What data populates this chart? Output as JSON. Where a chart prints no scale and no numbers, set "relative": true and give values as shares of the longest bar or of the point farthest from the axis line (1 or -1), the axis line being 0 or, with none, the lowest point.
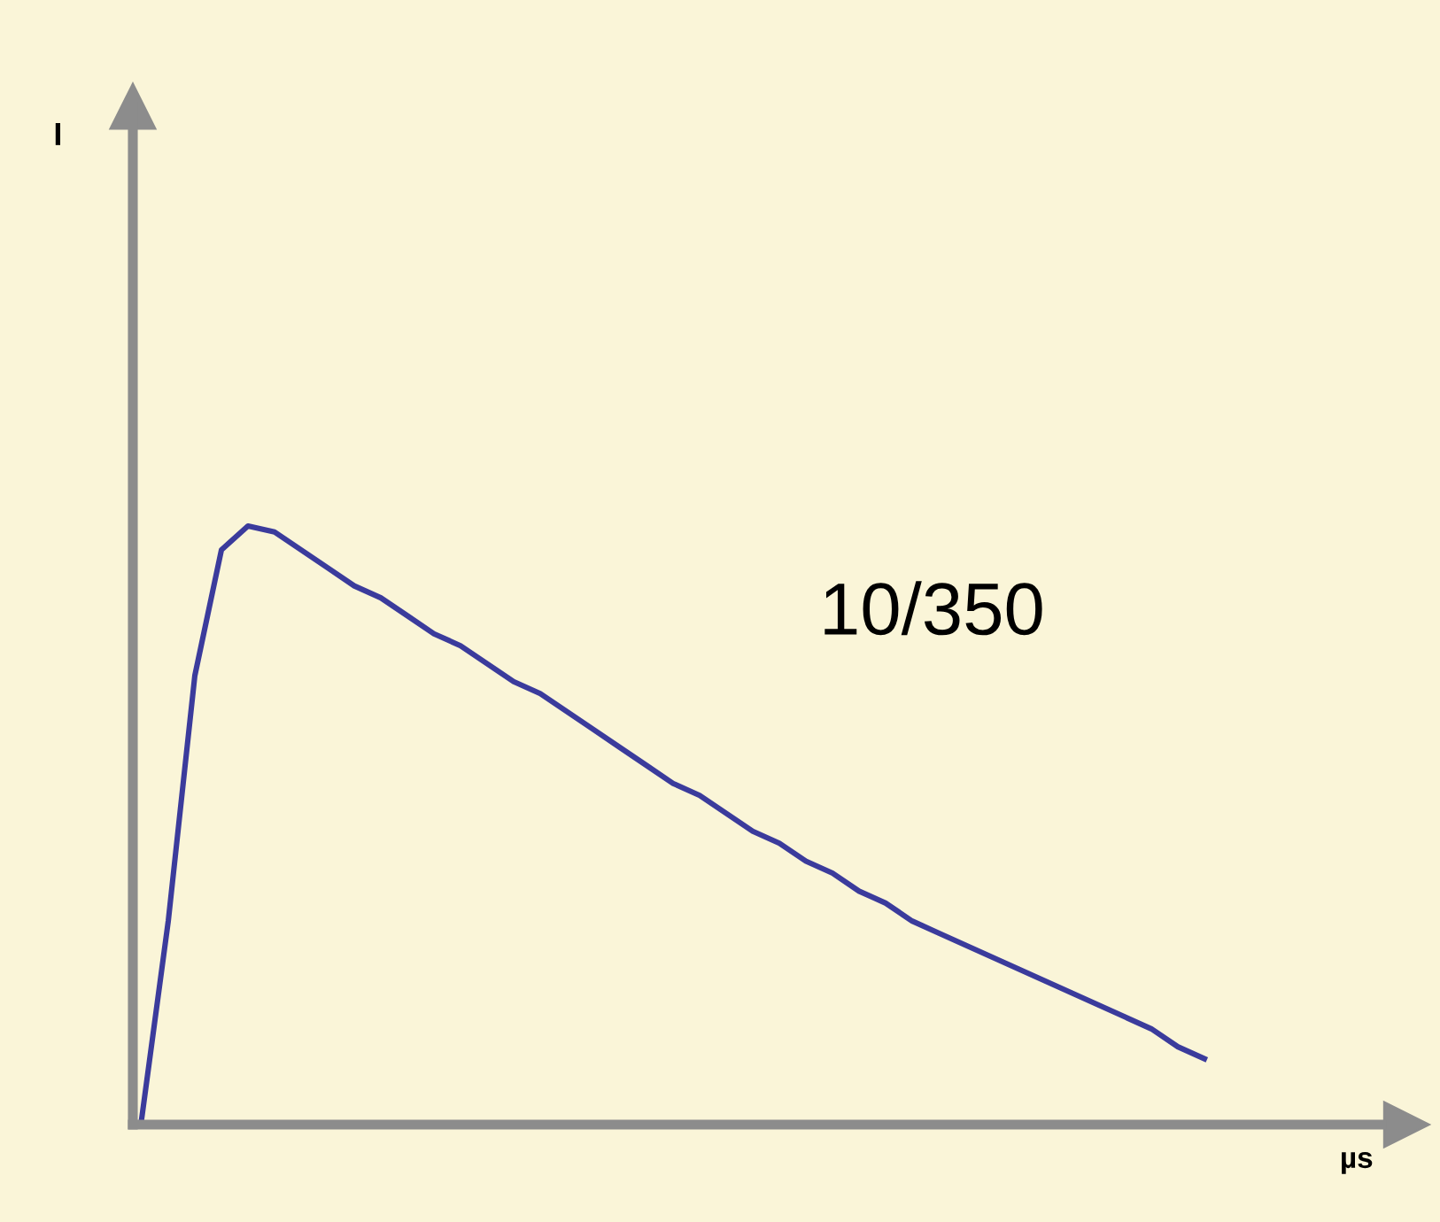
{
  "chart_data": {
    "type": "line",
    "relative": true,
    "xlabel": "µs",
    "annotations": [
      "10/350",
      "I"
    ],
    "categories": [
      null,
      null,
      null,
      null,
      null,
      null,
      null,
      null,
      null,
      null,
      null,
      null,
      null,
      null,
      null,
      null,
      null,
      null,
      null,
      null,
      null,
      null,
      null,
      null,
      null,
      null,
      null,
      null,
      null,
      null,
      null,
      null,
      null,
      null,
      null,
      null,
      null,
      null,
      null,
      null,
      null
    ],
    "series": [
      {
        "color": "#3b3b9c",
        "values": [
          0.01,
          0.34,
          0.75,
          0.96,
          1.0,
          0.99,
          0.96,
          0.93,
          0.9,
          0.88,
          0.85,
          0.82,
          0.8,
          0.77,
          0.74,
          0.72,
          0.69,
          0.66,
          0.63,
          0.6,
          0.57,
          0.55,
          0.52,
          0.49,
          0.47,
          0.44,
          0.42,
          0.39,
          0.37,
          0.34,
          0.32,
          0.3,
          0.28,
          0.26,
          0.24,
          0.22,
          0.2,
          0.18,
          0.16,
          0.13,
          0.11
        ]
      }
    ],
    "legend": false
  }
}
